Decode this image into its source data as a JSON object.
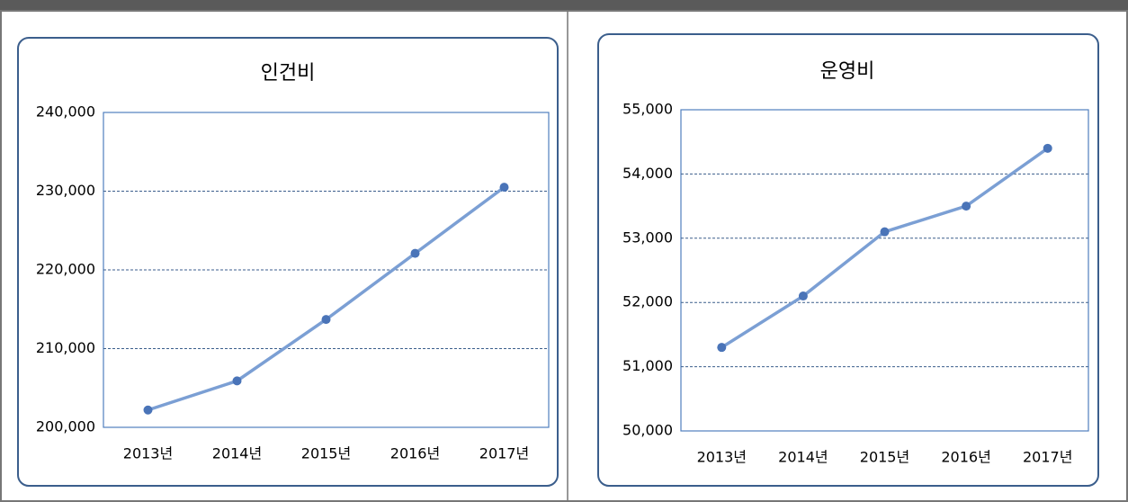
{
  "chart_data": [
    {
      "type": "line",
      "title": "인건비",
      "categories": [
        "2013년",
        "2014년",
        "2015년",
        "2016년",
        "2017년"
      ],
      "series": [
        {
          "color": "#7b9fd4",
          "values": [
            202200,
            205900,
            213700,
            222100,
            230500
          ]
        }
      ],
      "ylim": [
        200000,
        240000
      ],
      "yticks": [
        {
          "value": 200000,
          "label": "200,000"
        },
        {
          "value": 210000,
          "label": "210,000"
        },
        {
          "value": 220000,
          "label": "220,000"
        },
        {
          "value": 230000,
          "label": "230,000"
        },
        {
          "value": 240000,
          "label": "240,000"
        }
      ],
      "grid": true
    },
    {
      "type": "line",
      "title": "운영비",
      "categories": [
        "2013년",
        "2014년",
        "2015년",
        "2016년",
        "2017년"
      ],
      "series": [
        {
          "color": "#7b9fd4",
          "values": [
            51300,
            52100,
            53100,
            53500,
            54400
          ]
        }
      ],
      "ylim": [
        50000,
        55000
      ],
      "yticks": [
        {
          "value": 50000,
          "label": "50,000"
        },
        {
          "value": 51000,
          "label": "51,000"
        },
        {
          "value": 52000,
          "label": "52,000"
        },
        {
          "value": 53000,
          "label": "53,000"
        },
        {
          "value": 54000,
          "label": "54,000"
        },
        {
          "value": 55000,
          "label": "55,000"
        }
      ],
      "grid": true
    }
  ]
}
